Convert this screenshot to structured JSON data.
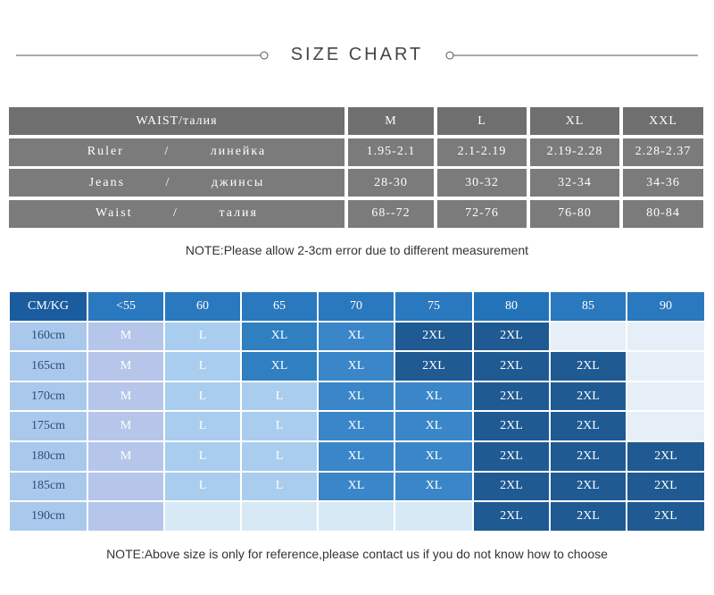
{
  "title": "SIZE CHART",
  "table1": {
    "header": [
      "WAIST/талия",
      "M",
      "L",
      "XL",
      "XXL"
    ],
    "rows": [
      [
        "Ruler / линейка",
        "1.95-2.1",
        "2.1-2.19",
        "2.19-2.28",
        "2.28-2.37"
      ],
      [
        "Jeans / джинсы",
        "28-30",
        "30-32",
        "32-34",
        "34-36"
      ],
      [
        "Waist / талия",
        "68--72",
        "72-76",
        "76-80",
        "80-84"
      ]
    ]
  },
  "note1": "NOTE:Please allow 2-3cm error due to different measurement",
  "table2": {
    "header": [
      "CM/KG",
      "<55",
      "60",
      "65",
      "70",
      "75",
      "80",
      "85",
      "90"
    ],
    "rows": [
      [
        "160cm",
        "M",
        "L",
        "XL",
        "XL",
        "2XL",
        "2XL",
        null,
        null
      ],
      [
        "165cm",
        "M",
        "L",
        "XL",
        "XL",
        "2XL",
        "2XL",
        "2XL",
        null
      ],
      [
        "170cm",
        "M",
        "L",
        "L",
        "XL",
        "XL",
        "2XL",
        "2XL",
        null
      ],
      [
        "175cm",
        "M",
        "L",
        "L",
        "XL",
        "XL",
        "2XL",
        "2XL",
        null
      ],
      [
        "180cm",
        "M",
        "L",
        "L",
        "XL",
        "XL",
        "2XL",
        "2XL",
        "2XL"
      ],
      [
        "185cm",
        null,
        "L",
        "L",
        "XL",
        "XL",
        "2XL",
        "2XL",
        "2XL"
      ],
      [
        "190cm",
        null,
        null,
        null,
        null,
        null,
        "2XL",
        "2XL",
        "2XL"
      ]
    ]
  },
  "note2": "NOTE:Above size is only for reference,please contact us if you do not know how to choose"
}
